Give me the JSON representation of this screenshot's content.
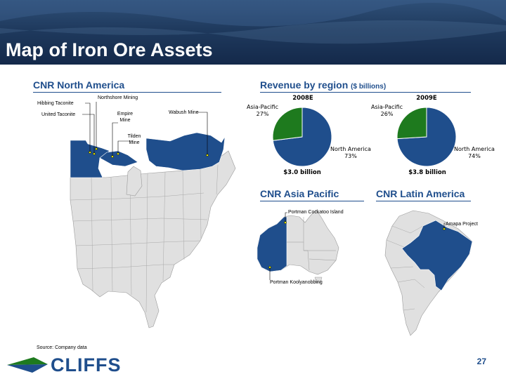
{
  "slide": {
    "title": "Map of Iron Ore Assets",
    "page_number": "27",
    "source": "Source: Company data",
    "logo_text": "CLIFFS",
    "colors": {
      "navy": "#1f4e8c",
      "map_blue": "#1f4e8c",
      "land_gray": "#e0e0e0",
      "pie_green": "#1e7a1e"
    }
  },
  "north_america": {
    "heading": "CNR North America",
    "mines": {
      "northshore": "Northshore Mining",
      "hibbing": "Hibbing Taconite",
      "united": "United Taconite",
      "empire": "Empire\nMine",
      "wabush": "Wabush Mine",
      "tilden": "Tilden\nMine"
    }
  },
  "revenue": {
    "heading": "Revenue by region",
    "heading_sub": "($ billions)"
  },
  "asia_pacific": {
    "heading": "CNR Asia Pacific",
    "mines": {
      "cockatoo": "Portman Cockatoo Island",
      "koolyanobbing": "Portman Koolyanobbing"
    }
  },
  "latin_america": {
    "heading": "CNR Latin America",
    "mines": {
      "amapa": "Amapa Project"
    }
  },
  "chart_data": [
    {
      "type": "pie",
      "title": "2008E",
      "total_label": "$3.0 billion",
      "slices": [
        {
          "label": "North America",
          "value": 73,
          "value_label": "73%",
          "color": "#1f4e8c"
        },
        {
          "label": "Asia-Pacific",
          "value": 27,
          "value_label": "27%",
          "color": "#1e7a1e"
        }
      ]
    },
    {
      "type": "pie",
      "title": "2009E",
      "total_label": "$3.8 billion",
      "slices": [
        {
          "label": "North America",
          "value": 74,
          "value_label": "74%",
          "color": "#1f4e8c"
        },
        {
          "label": "Asia-Pacific",
          "value": 26,
          "value_label": "26%",
          "color": "#1e7a1e"
        }
      ]
    }
  ]
}
